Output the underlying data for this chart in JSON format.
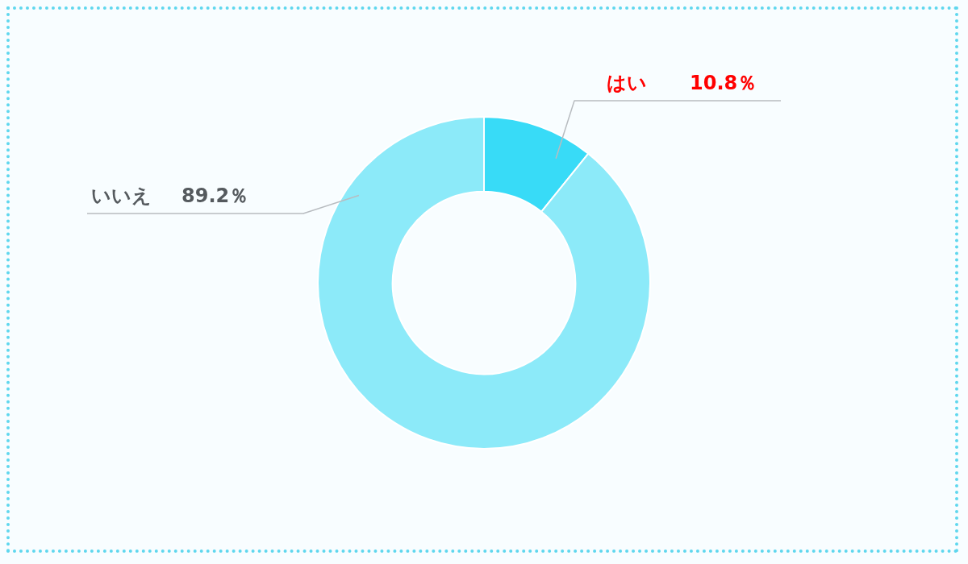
{
  "chart_data": {
    "type": "donut",
    "categories": [
      "はい",
      "いいえ"
    ],
    "values": [
      10.8,
      89.2
    ],
    "colors": [
      "#38dbf7",
      "#8ceaf9"
    ],
    "value_labels": [
      "10.8％",
      "89.2％"
    ],
    "legend": false
  }
}
